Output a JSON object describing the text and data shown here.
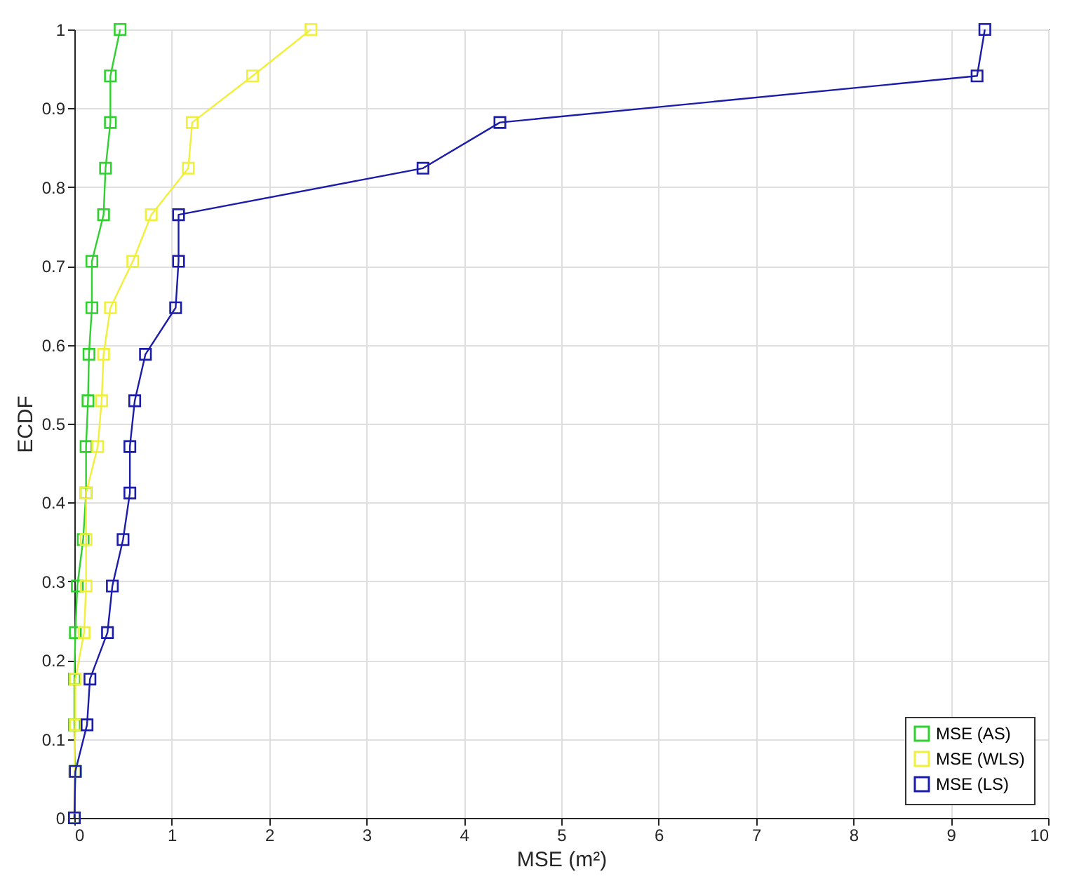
{
  "chart_data": {
    "type": "line",
    "xlabel": "MSE (m²)",
    "ylabel": "ECDF",
    "xlim": [
      0,
      10
    ],
    "xticks": [
      0,
      1,
      2,
      3,
      4,
      5,
      6,
      7,
      8,
      9,
      10
    ],
    "ylim": [
      0,
      1
    ],
    "yticks": [
      0,
      0.1,
      0.2,
      0.3,
      0.4,
      0.5,
      0.6,
      0.7,
      0.8,
      0.9,
      1
    ],
    "grid": true,
    "legend": "bottom right",
    "marker": "square",
    "line_style": "solid",
    "series": [
      {
        "name": "MSE (AS)",
        "color": "#2fd12f",
        "x": [
          0,
          0.01,
          0,
          0,
          0.01,
          0.03,
          0.09,
          0.12,
          0.12,
          0.14,
          0.15,
          0.18,
          0.18,
          0.3,
          0.32,
          0.37,
          0.37,
          0.47
        ],
        "values": [
          0,
          0.059,
          0.118,
          0.176,
          0.235,
          0.294,
          0.353,
          0.412,
          0.471,
          0.529,
          0.588,
          0.647,
          0.706,
          0.765,
          0.824,
          0.882,
          0.941,
          1
        ]
      },
      {
        "name": "MSE (WLS)",
        "color": "#f0f03a",
        "x": [
          0,
          0,
          0.01,
          0.01,
          0.1,
          0.12,
          0.12,
          0.12,
          0.24,
          0.28,
          0.3,
          0.37,
          0.6,
          0.79,
          1.17,
          1.21,
          1.83,
          2.43
        ],
        "values": [
          0,
          0.059,
          0.118,
          0.176,
          0.235,
          0.294,
          0.353,
          0.412,
          0.471,
          0.529,
          0.588,
          0.647,
          0.706,
          0.765,
          0.824,
          0.882,
          0.941,
          1
        ]
      },
      {
        "name": "MSE (LS)",
        "color": "#1c1caa",
        "x": [
          0,
          0.01,
          0.13,
          0.16,
          0.34,
          0.39,
          0.5,
          0.57,
          0.57,
          0.62,
          0.73,
          1.04,
          1.07,
          1.07,
          3.58,
          4.37,
          9.27,
          9.35
        ],
        "values": [
          0,
          0.059,
          0.118,
          0.176,
          0.235,
          0.294,
          0.353,
          0.412,
          0.471,
          0.529,
          0.588,
          0.647,
          0.706,
          0.765,
          0.824,
          0.882,
          0.941,
          1
        ]
      }
    ]
  }
}
